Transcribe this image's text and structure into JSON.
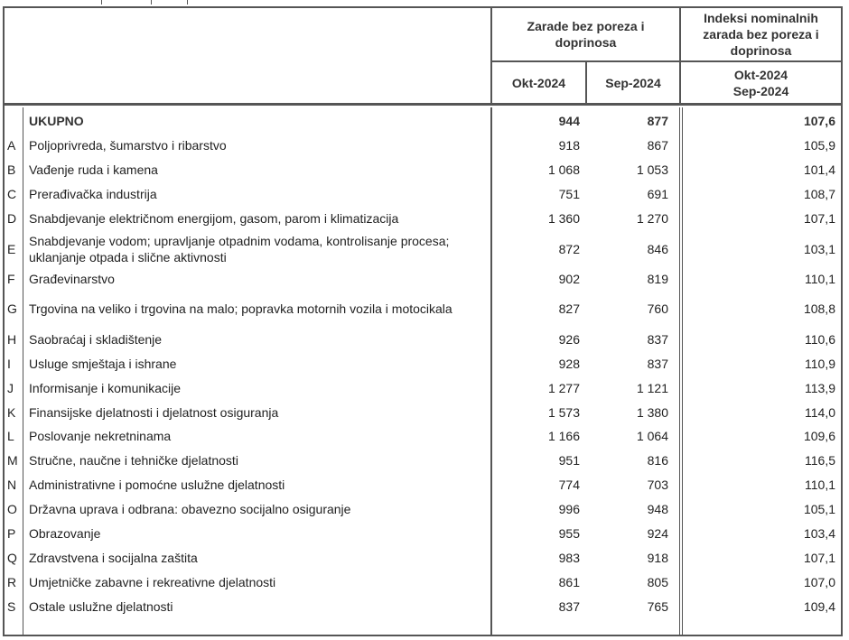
{
  "header": {
    "group1": "Zarade bez poreza i doprinosa",
    "group2": "Indeksi nominalnih zarada bez poreza i doprinosa",
    "col_okt": "Okt-2024",
    "col_sep": "Sep-2024",
    "idx_line1": "Okt-2024",
    "idx_line2": "Sep-2024"
  },
  "rows": [
    {
      "code": "",
      "name": "UKUPNO",
      "okt": "944",
      "sep": "877",
      "idx": "107,6",
      "bold": true
    },
    {
      "code": "A",
      "name": "Poljoprivreda, šumarstvo i ribarstvo",
      "okt": "918",
      "sep": "867",
      "idx": "105,9"
    },
    {
      "code": "B",
      "name": "Vađenje ruda i kamena",
      "okt": "1 068",
      "sep": "1 053",
      "idx": "101,4"
    },
    {
      "code": "C",
      "name": "Prerađivačka industrija",
      "okt": "751",
      "sep": "691",
      "idx": "108,7"
    },
    {
      "code": "D",
      "name": "Snabdjevanje električnom energijom, gasom, parom i klimatizacija",
      "okt": "1 360",
      "sep": "1 270",
      "idx": "107,1"
    },
    {
      "code": "E",
      "name": "Snabdjevanje vodom; upravljanje otpadnim vodama, kontrolisanje procesa; uklanjanje otpada i slične aktivnosti",
      "okt": "872",
      "sep": "846",
      "idx": "103,1",
      "double": true
    },
    {
      "code": "F",
      "name": "Građevinarstvo",
      "okt": "902",
      "sep": "819",
      "idx": "110,1"
    },
    {
      "code": "G",
      "name": "Trgovina na veliko i trgovina na malo; popravka motornih vozila i motocikala",
      "okt": "827",
      "sep": "760",
      "idx": "108,8",
      "double": true
    },
    {
      "code": "H",
      "name": "Saobraćaj i skladištenje",
      "okt": "926",
      "sep": "837",
      "idx": "110,6"
    },
    {
      "code": "I",
      "name": "Usluge smještaja i ishrane",
      "okt": "928",
      "sep": "837",
      "idx": "110,9"
    },
    {
      "code": "J",
      "name": "Informisanje i komunikacije",
      "okt": "1 277",
      "sep": "1 121",
      "idx": "113,9"
    },
    {
      "code": "K",
      "name": "Finansijske djelatnosti i djelatnost osiguranja",
      "okt": "1 573",
      "sep": "1 380",
      "idx": "114,0"
    },
    {
      "code": "L",
      "name": "Poslovanje nekretninama",
      "okt": "1 166",
      "sep": "1 064",
      "idx": "109,6"
    },
    {
      "code": "M",
      "name": "Stručne, naučne i tehničke djelatnosti",
      "okt": "951",
      "sep": "816",
      "idx": "116,5"
    },
    {
      "code": "N",
      "name": "Administrativne i pomoćne  uslužne djelatnosti",
      "okt": "774",
      "sep": "703",
      "idx": "110,1"
    },
    {
      "code": "O",
      "name": "Državna uprava i odbrana: obavezno socijalno osiguranje",
      "okt": "996",
      "sep": "948",
      "idx": "105,1"
    },
    {
      "code": "P",
      "name": "Obrazovanje",
      "okt": "955",
      "sep": "924",
      "idx": "103,4"
    },
    {
      "code": "Q",
      "name": "Zdravstvena i socijalna zaštita",
      "okt": "983",
      "sep": "918",
      "idx": "107,1"
    },
    {
      "code": "R",
      "name": "Umjetničke zabavne i rekreativne djelatnosti",
      "okt": "861",
      "sep": "805",
      "idx": "107,0"
    },
    {
      "code": "S",
      "name": "Ostale uslužne djelatnosti",
      "okt": "837",
      "sep": "765",
      "idx": "109,4"
    }
  ]
}
